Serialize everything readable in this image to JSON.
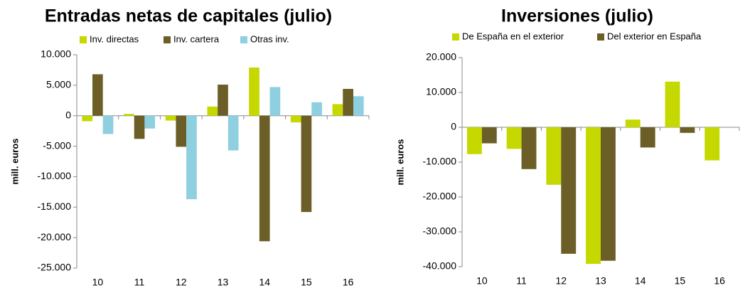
{
  "chart_data": [
    {
      "type": "bar",
      "title": "Entradas netas de capitales (julio)",
      "ylabel": "mill. euros",
      "categories": [
        "10",
        "11",
        "12",
        "13",
        "14",
        "15",
        "16"
      ],
      "series": [
        {
          "name": "Inv. directas",
          "color": "#c5d800",
          "values": [
            -900,
            300,
            -800,
            1500,
            7900,
            -1100,
            1900
          ]
        },
        {
          "name": "Inv. cartera",
          "color": "#6b5e27",
          "values": [
            6800,
            -3800,
            -5100,
            5100,
            -20600,
            -15800,
            4400
          ]
        },
        {
          "name": "Otras inv.",
          "color": "#8ecfe0",
          "values": [
            -3000,
            -2100,
            -13700,
            -5700,
            4700,
            2200,
            3200
          ]
        }
      ],
      "ylim": [
        -25000,
        10000
      ],
      "yticks": [
        {
          "value": -25000,
          "label": "-25.000"
        },
        {
          "value": -20000,
          "label": "-20.000"
        },
        {
          "value": -15000,
          "label": "-15.000"
        },
        {
          "value": -10000,
          "label": "-10.000"
        },
        {
          "value": -5000,
          "label": "-5.000"
        },
        0,
        {
          "value": 5000,
          "label": "5.000"
        },
        {
          "value": 10000,
          "label": "10.000"
        }
      ],
      "grid": false,
      "legend": "top"
    },
    {
      "type": "bar",
      "title": "Inversiones (julio)",
      "ylabel": "mill. euros",
      "categories": [
        "10",
        "11",
        "12",
        "13",
        "14",
        "15",
        "16"
      ],
      "series": [
        {
          "name": "De España en el exterior",
          "color": "#c5d800",
          "values": [
            -7700,
            -6200,
            -16500,
            -39200,
            2200,
            13100,
            -9500
          ]
        },
        {
          "name": "Del exterior en España",
          "color": "#6b5e27",
          "values": [
            -4600,
            -12000,
            -36300,
            -38300,
            -5800,
            -1600,
            null
          ]
        }
      ],
      "ylim": [
        -40000,
        20000
      ],
      "yticks": [
        {
          "value": -40000,
          "label": "-40.000"
        },
        {
          "value": -30000,
          "label": "-30.000"
        },
        {
          "value": -20000,
          "label": "-20.000"
        },
        {
          "value": -10000,
          "label": "-10.000"
        },
        0,
        {
          "value": 10000,
          "label": "10.000"
        },
        {
          "value": 20000,
          "label": "20.000"
        }
      ],
      "grid": false,
      "legend": "top"
    }
  ]
}
